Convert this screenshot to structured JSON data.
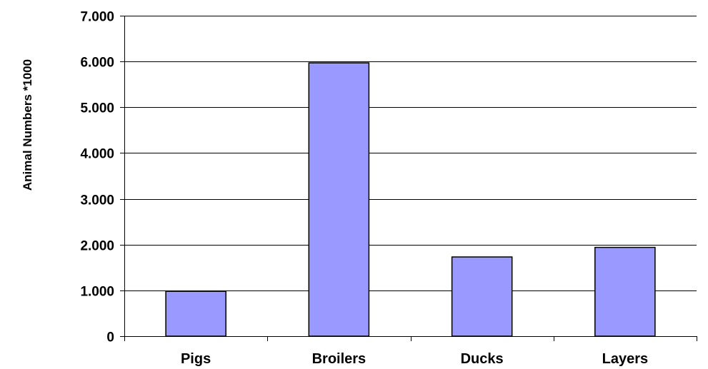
{
  "chart_data": {
    "type": "bar",
    "title": "",
    "xlabel": "",
    "ylabel": "Animal Numbers *1000",
    "categories": [
      "Pigs",
      "Broilers",
      "Ducks",
      "Layers"
    ],
    "values": [
      980,
      5970,
      1730,
      1940
    ],
    "ylim": [
      0,
      7000
    ],
    "yticks": [
      0,
      1000,
      2000,
      3000,
      4000,
      5000,
      6000,
      7000
    ],
    "ytick_labels": [
      "0",
      "1.000",
      "2.000",
      "3.000",
      "4.000",
      "5.000",
      "6.000",
      "7.000"
    ],
    "grid": true,
    "legend": "none",
    "bar_color": "#9999ff",
    "bar_edge_color": "#000000"
  }
}
